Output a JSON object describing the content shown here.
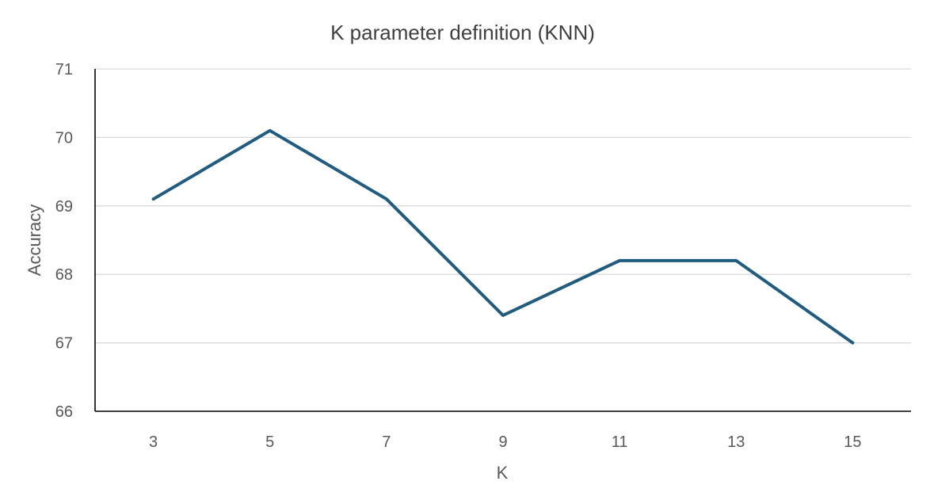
{
  "chart_data": {
    "type": "line",
    "title": "K parameter definition (KNN)",
    "xlabel": "K",
    "ylabel": "Accuracy",
    "categories": [
      "3",
      "5",
      "7",
      "9",
      "11",
      "13",
      "15"
    ],
    "series": [
      {
        "values": [
          69.1,
          70.1,
          69.1,
          67.4,
          68.2,
          68.2,
          67.0
        ],
        "color": "#1f5c7f"
      }
    ],
    "ylim": [
      66,
      71
    ],
    "yticks": [
      66,
      67,
      68,
      69,
      70,
      71
    ],
    "grid": true,
    "legend": "none"
  }
}
